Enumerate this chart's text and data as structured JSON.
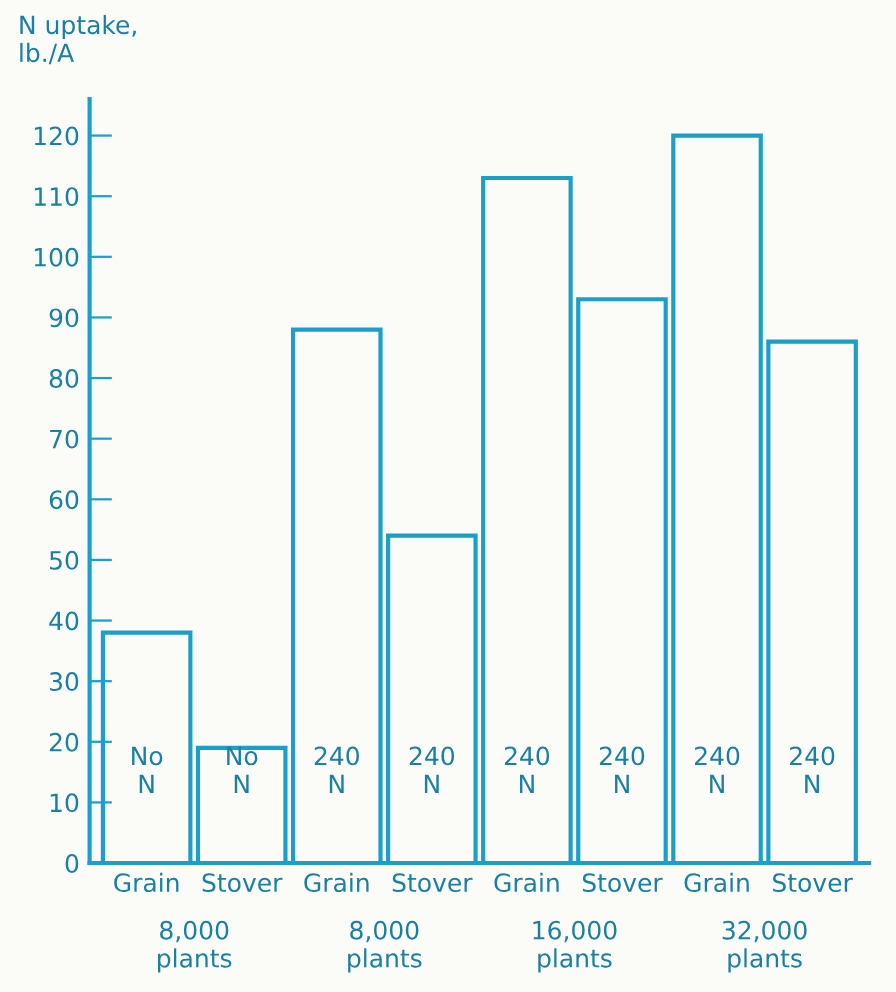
{
  "chart_data": {
    "type": "bar",
    "ylabel": "N uptake,\nlb./A",
    "categories": [
      "Grain",
      "Stover",
      "Grain",
      "Stover",
      "Grain",
      "Stover",
      "Grain",
      "Stover"
    ],
    "values": [
      38,
      19,
      88,
      54,
      113,
      93,
      120,
      86
    ],
    "color": "#1a9fc9",
    "ylim": [
      0,
      126
    ],
    "yticks": [
      0,
      10,
      20,
      30,
      40,
      50,
      60,
      70,
      80,
      90,
      100,
      110,
      120
    ],
    "annotations": [
      "No\nN",
      "No\nN",
      "240\nN",
      "240\nN",
      "240\nN",
      "240\nN",
      "240\nN",
      "240\nN",
      "8,000\nplants",
      "8,000\nplants",
      "16,000\nplants",
      "32,000\nplants"
    ],
    "grid": false
  }
}
